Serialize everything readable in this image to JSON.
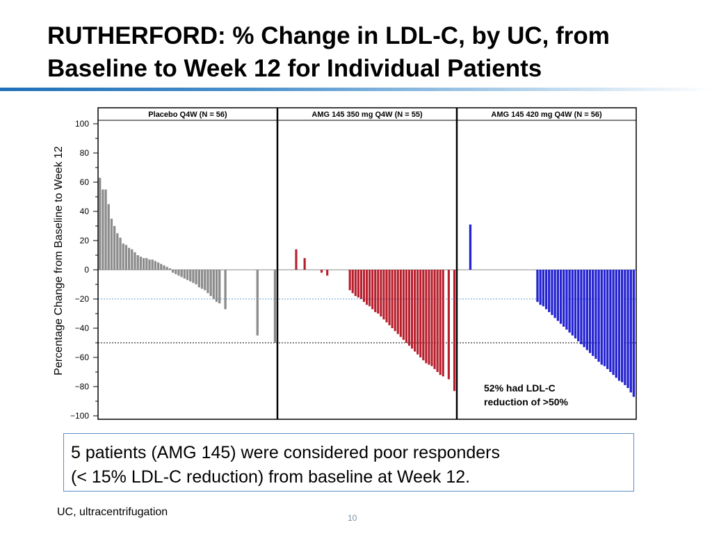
{
  "slide": {
    "title_line1": "RUTHERFORD: % Change in LDL-C, by UC, from",
    "title_line2": "Baseline to Week 12 for Individual Patients",
    "callout_line1": "5 patients (AMG 145) were considered poor responders",
    "callout_line2": "(< 15% LDL-C reduction) from baseline at Week 12.",
    "footnote": "UC, ultracentrifugation",
    "page_number": "10"
  },
  "chart_data": {
    "type": "bar",
    "ylabel": "Percentage Change from Baseline to Week 12",
    "ylim": [
      -100,
      100
    ],
    "yticks": [
      100,
      80,
      60,
      40,
      20,
      0,
      -20,
      -40,
      -60,
      -80,
      -100
    ],
    "ytick_labels": [
      "100",
      "80",
      "60",
      "40",
      "20",
      "0",
      "−20",
      "−40",
      "−60",
      "−80",
      "−100"
    ],
    "reference_lines": [
      {
        "y": -20,
        "color": "#5a9bd5",
        "style": "dotted"
      },
      {
        "y": -50,
        "color": "#000000",
        "style": "dotted"
      }
    ],
    "panels": [
      {
        "name": "Placebo Q4W (N = 56)",
        "color": "#8c8c8c",
        "values": [
          63,
          55,
          55,
          45,
          35,
          30,
          25,
          22,
          18,
          17,
          15,
          14,
          12,
          10,
          9,
          8,
          8,
          7,
          7,
          6,
          5,
          4,
          3,
          2,
          1,
          -2,
          -3,
          -4,
          -5,
          -6,
          -7,
          -8,
          -9,
          -10,
          -12,
          -13,
          -14,
          -16,
          -18,
          -20,
          -22,
          -23,
          null,
          -27,
          null,
          null,
          null,
          null,
          null,
          null,
          null,
          null,
          null,
          null,
          -45,
          null,
          null,
          null,
          null,
          null,
          -50
        ]
      },
      {
        "name": "AMG 145 350 mg Q4W (N = 55)",
        "color": "#b8202e",
        "values": [
          null,
          null,
          null,
          null,
          null,
          null,
          14,
          null,
          null,
          8,
          null,
          null,
          null,
          null,
          null,
          -2,
          null,
          -4,
          null,
          null,
          null,
          null,
          null,
          null,
          null,
          -14,
          -16,
          -18,
          -19,
          -20,
          -22,
          -24,
          -25,
          -27,
          -29,
          -30,
          -32,
          -34,
          -36,
          -38,
          -40,
          -42,
          -44,
          -46,
          -48,
          -50,
          -52,
          -54,
          -56,
          -58,
          -60,
          -62,
          -64,
          -65,
          -66,
          -68,
          -70,
          -72,
          -73,
          null,
          -75,
          null,
          -83
        ]
      },
      {
        "name": "AMG 145 420 mg Q4W (N = 56)",
        "color": "#2323d2",
        "values": [
          null,
          null,
          null,
          null,
          31,
          null,
          null,
          null,
          null,
          null,
          null,
          null,
          null,
          null,
          null,
          null,
          null,
          null,
          null,
          null,
          null,
          null,
          null,
          null,
          null,
          null,
          null,
          -22,
          -24,
          -25,
          -27,
          -29,
          -31,
          -33,
          -35,
          -37,
          -39,
          -41,
          -43,
          -45,
          -47,
          -49,
          -51,
          -53,
          -55,
          -57,
          -59,
          -61,
          -63,
          -65,
          -66,
          -68,
          -70,
          -72,
          -74,
          -76,
          -77,
          -79,
          -81,
          -84,
          -87
        ]
      }
    ],
    "annotation": {
      "panel": 2,
      "line1": "52% had LDL-C",
      "line2": "reduction of >50%"
    }
  }
}
